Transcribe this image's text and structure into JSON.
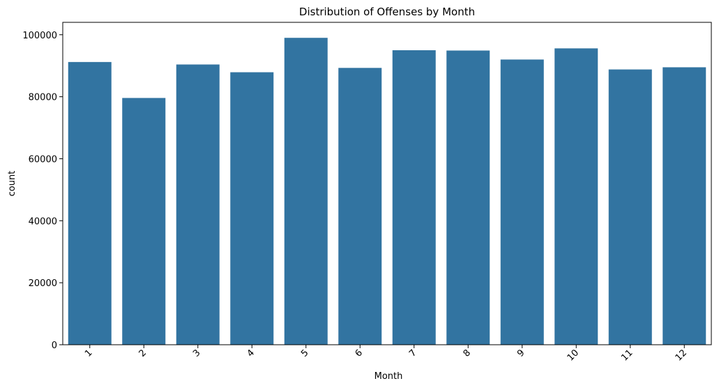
{
  "chart_data": {
    "type": "bar",
    "title": "Distribution of Offenses by Month",
    "xlabel": "Month",
    "ylabel": "count",
    "categories": [
      "1",
      "2",
      "3",
      "4",
      "5",
      "6",
      "7",
      "8",
      "9",
      "10",
      "11",
      "12"
    ],
    "values": [
      91200,
      79600,
      90400,
      87900,
      99000,
      89300,
      95000,
      94900,
      92000,
      95600,
      88800,
      89500
    ],
    "ylim": [
      0,
      104000
    ],
    "yticks": [
      0,
      20000,
      40000,
      60000,
      80000,
      100000
    ],
    "ytick_labels": [
      "0",
      "20000",
      "40000",
      "60000",
      "80000",
      "100000"
    ],
    "xtick_rotation": "45 degrees",
    "grid": false,
    "legend": "none",
    "bar_color": "#3274a1"
  }
}
